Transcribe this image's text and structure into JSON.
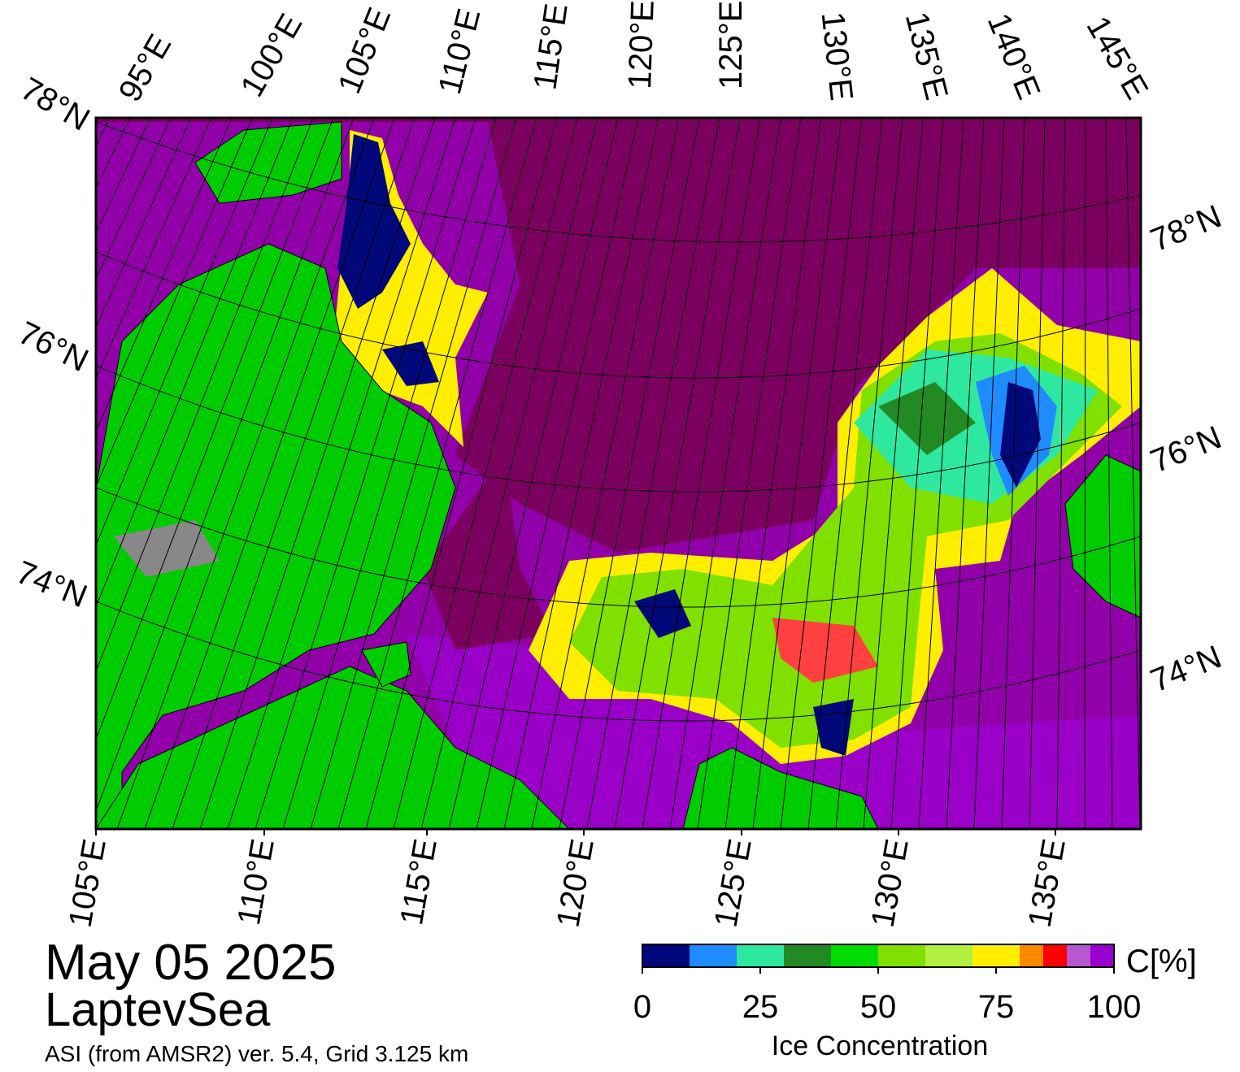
{
  "map": {
    "top_labels": [
      "95°E",
      "100°E",
      "105°E",
      "110°E",
      "115°E",
      "120°E",
      "125°E",
      "130°E",
      "135°E",
      "140°E",
      "145°E"
    ],
    "left_labels": [
      "78°N",
      "76°N",
      "74°N"
    ],
    "right_labels": [
      "78°N",
      "76°N",
      "74°N"
    ],
    "bottom_labels": [
      "105°E",
      "110°E",
      "115°E",
      "120°E",
      "125°E",
      "130°E",
      "135°E"
    ]
  },
  "caption": {
    "date": "May 05 2025",
    "region": "LaptevSea",
    "note": "ASI (from AMSR2) ver. 5.4,  Grid 3.125 km"
  },
  "colorbar": {
    "title": "Ice Concentration",
    "unit": "C[%]",
    "lim": [
      0,
      100
    ],
    "ticks": [
      0,
      25,
      50,
      75,
      100
    ],
    "bounds": [
      0,
      10,
      20,
      30,
      40,
      50,
      60,
      70,
      80,
      85,
      90,
      95,
      100
    ],
    "colors": [
      "#00087a",
      "#1e8cff",
      "#2ee8a0",
      "#238a23",
      "#00dc00",
      "#80e000",
      "#b0f040",
      "#ffee00",
      "#ff8800",
      "#ff0000",
      "#b858d0",
      "#9800d0"
    ]
  }
}
